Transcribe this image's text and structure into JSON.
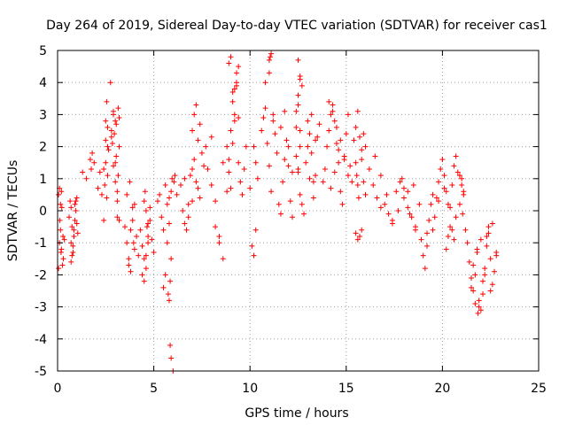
{
  "chart_data": {
    "type": "scatter",
    "title": "Day 264 of 2019, Sidereal Day-to-day VTEC variation (SDTVAR) for receiver cas1",
    "xlabel": "GPS time / hours",
    "ylabel": "SDTVAR / TECUs",
    "xlim": [
      0,
      25
    ],
    "ylim": [
      -5,
      5
    ],
    "xticks": [
      0,
      5,
      10,
      15,
      20,
      25
    ],
    "yticks": [
      -5,
      -4,
      -3,
      -2,
      -1,
      0,
      1,
      2,
      3,
      4,
      5
    ],
    "xtick_labels": [
      "0",
      "5",
      "10",
      "15",
      "20",
      "25"
    ],
    "ytick_labels": [
      "-5",
      "-4",
      "-3",
      "-2",
      "-1",
      "0",
      "1",
      "2",
      "3",
      "4",
      "5"
    ],
    "grid": true,
    "marker": "+",
    "color": "#ff0000",
    "series": [
      {
        "name": "cas1",
        "x": [
          0.05,
          0.1,
          0.15,
          0.2,
          0.25,
          0.3,
          0.35,
          0.05,
          0.1,
          0.15,
          0.2,
          0.12,
          0.18,
          0.22,
          0.28,
          0.6,
          0.65,
          0.7,
          0.75,
          0.8,
          0.85,
          0.9,
          0.95,
          1.0,
          1.05,
          0.7,
          0.8,
          0.9,
          1.0,
          0.75,
          0.85,
          0.95,
          0.7,
          1.3,
          1.5,
          1.7,
          1.75,
          1.8,
          1.9,
          2.1,
          2.2,
          2.3,
          2.4,
          2.5,
          2.6,
          2.4,
          2.45,
          2.5,
          2.55,
          2.6,
          2.5,
          2.55,
          2.6,
          2.65,
          2.75,
          2.8,
          2.85,
          2.9,
          2.95,
          3.0,
          3.05,
          3.1,
          3.15,
          3.2,
          2.8,
          2.9,
          3.0,
          3.1,
          3.2,
          2.9,
          3.0,
          3.1,
          3.2,
          3.05,
          3.15,
          3.5,
          3.6,
          3.7,
          3.8,
          3.9,
          4.0,
          4.1,
          4.2,
          3.7,
          3.8,
          3.9,
          4.0,
          3.6,
          3.75,
          3.95,
          4.3,
          4.4,
          4.5,
          4.6,
          4.7,
          4.8,
          4.9,
          5.0,
          4.4,
          4.5,
          4.6,
          4.7,
          4.8,
          4.5,
          4.55,
          4.6,
          4.65,
          4.7,
          5.2,
          5.3,
          5.4,
          5.5,
          5.6,
          5.7,
          5.8,
          5.9,
          5.5,
          5.6,
          5.7,
          5.8,
          5.75,
          5.8,
          5.85,
          5.9,
          5.95,
          5.85,
          5.9,
          6.0,
          6.05,
          6.1,
          6.2,
          6.4,
          6.6,
          6.8,
          7.0,
          7.2,
          7.4,
          7.6,
          6.5,
          6.7,
          6.9,
          7.1,
          7.3,
          7.5,
          7.7,
          7.0,
          7.1,
          7.2,
          7.3,
          7.4,
          6.6,
          6.8,
          7.0,
          7.8,
          8.0,
          8.2,
          8.4,
          8.6,
          8.8,
          8.0,
          8.2,
          8.4,
          8.6,
          8.8,
          8.9,
          9.0,
          9.1,
          9.2,
          9.3,
          9.4,
          8.9,
          9.0,
          9.1,
          9.2,
          9.3,
          9.4,
          8.9,
          9.0,
          9.1,
          9.2,
          9.3,
          9.4,
          9.5,
          9.6,
          9.7,
          9.8,
          10.0,
          10.1,
          10.2,
          10.3,
          10.2,
          10.3,
          10.4,
          10.6,
          10.7,
          10.8,
          10.9,
          11.0,
          11.1,
          11.2,
          11.3,
          11.4,
          10.8,
          11.0,
          11.1,
          11.2,
          11.5,
          11.6,
          11.7,
          11.8,
          11.9,
          12.0,
          12.1,
          12.2,
          11.6,
          11.8,
          12.0,
          12.2,
          11.0,
          11.05,
          12.4,
          12.5,
          12.6,
          12.7,
          12.8,
          12.9,
          13.0,
          13.1,
          13.2,
          13.3,
          13.4,
          13.5,
          13.6,
          12.5,
          12.6,
          12.7,
          12.4,
          12.5,
          12.6,
          12.4,
          12.5,
          12.6,
          12.5,
          12.6,
          13.0,
          13.2,
          13.4,
          13.1,
          13.3,
          13.8,
          13.9,
          14.0,
          14.1,
          14.2,
          14.3,
          14.4,
          14.5,
          14.6,
          14.7,
          14.8,
          14.9,
          15.0,
          15.1,
          15.2,
          15.3,
          14.1,
          14.3,
          14.5,
          14.7,
          14.9,
          15.1,
          14.2,
          14.4,
          14.6,
          15.4,
          15.5,
          15.6,
          15.7,
          15.8,
          15.9,
          16.0,
          15.5,
          15.6,
          15.7,
          15.8,
          15.5,
          15.55,
          15.6,
          15.65,
          15.8,
          15.9,
          16.0,
          16.2,
          16.4,
          16.6,
          16.8,
          17.0,
          17.2,
          17.4,
          17.6,
          17.8,
          18.0,
          18.2,
          18.4,
          18.6,
          18.8,
          16.5,
          16.8,
          17.1,
          17.4,
          17.7,
          18.0,
          18.3,
          18.6,
          17.9,
          18.2,
          18.5,
          18.9,
          19.0,
          19.1,
          19.2,
          19.3,
          19.4,
          19.5,
          19.6,
          19.7,
          19.8,
          19.9,
          20.0,
          20.1,
          20.2,
          20.3,
          20.4,
          20.5,
          20.6,
          20.7,
          20.8,
          19.2,
          19.5,
          19.8,
          20.1,
          20.4,
          20.7,
          20.5,
          20.6,
          20.2,
          20.3,
          20.9,
          21.0,
          21.1,
          21.2,
          20.9,
          21.0,
          21.05,
          21.1,
          21.3,
          21.4,
          21.5,
          21.6,
          21.7,
          21.8,
          21.9,
          22.0,
          22.1,
          22.2,
          22.3,
          22.4,
          22.5,
          22.6,
          22.7,
          22.8,
          21.5,
          21.7,
          21.9,
          22.1,
          21.6,
          21.8,
          22.0,
          22.4,
          22.6,
          22.8,
          22.2,
          22.5,
          22.3,
          21.85
        ],
        "y": [
          0.5,
          0.7,
          -0.6,
          -1.2,
          -1.7,
          -1.5,
          -0.9,
          -1.8,
          -1.0,
          0.2,
          0.6,
          -0.3,
          -1.3,
          0.1,
          -0.8,
          -0.2,
          0.3,
          0.1,
          -0.5,
          -1.3,
          -0.8,
          -0.3,
          0.0,
          0.4,
          -0.7,
          -1.6,
          -1.1,
          0.2,
          -0.4,
          -1.4,
          -0.6,
          0.3,
          -1.0,
          1.2,
          1.0,
          1.6,
          1.3,
          1.8,
          1.5,
          0.7,
          1.2,
          0.5,
          -0.3,
          1.5,
          2.0,
          1.3,
          0.8,
          2.2,
          0.4,
          1.1,
          2.8,
          3.4,
          2.6,
          1.9,
          4.0,
          2.5,
          2.1,
          3.0,
          2.4,
          2.8,
          1.7,
          0.6,
          3.2,
          2.9,
          2.3,
          1.4,
          0.9,
          -0.2,
          2.0,
          3.1,
          1.5,
          0.3,
          -0.3,
          2.7,
          1.1,
          -0.5,
          -1.0,
          -1.5,
          -1.9,
          -0.3,
          0.2,
          -0.8,
          -1.4,
          -1.7,
          -0.6,
          0.1,
          -1.2,
          0.5,
          0.9,
          -1.0,
          -0.6,
          -1.1,
          -1.5,
          -1.8,
          -0.4,
          0.1,
          -0.9,
          -1.3,
          -2.0,
          -2.2,
          -1.4,
          -0.8,
          -0.3,
          0.3,
          0.6,
          0.0,
          -0.5,
          -1.0,
          0.3,
          0.5,
          -0.2,
          -0.6,
          0.8,
          0.2,
          -0.4,
          -1.5,
          -2.4,
          -2.0,
          -1.0,
          0.4,
          -2.6,
          -2.8,
          -2.2,
          0.6,
          1.0,
          -4.2,
          -4.6,
          -5.0,
          0.9,
          1.1,
          0.5,
          0.8,
          1.0,
          0.2,
          1.3,
          0.9,
          0.4,
          1.4,
          0.0,
          -0.6,
          1.1,
          1.6,
          0.7,
          1.8,
          2.0,
          2.5,
          3.0,
          3.3,
          2.2,
          2.7,
          -0.4,
          -0.2,
          0.3,
          1.3,
          0.8,
          -0.5,
          -1.0,
          1.5,
          2.0,
          2.3,
          0.3,
          -0.8,
          -1.5,
          0.6,
          1.6,
          2.5,
          3.4,
          3.8,
          4.3,
          2.9,
          1.2,
          0.7,
          2.1,
          3.0,
          4.0,
          4.5,
          4.6,
          4.8,
          3.7,
          2.8,
          3.9,
          1.5,
          0.9,
          0.5,
          1.3,
          2.0,
          0.7,
          -1.1,
          -1.4,
          -0.6,
          2.0,
          1.5,
          1.0,
          2.5,
          2.9,
          3.2,
          2.1,
          1.4,
          0.6,
          2.8,
          2.4,
          1.8,
          4.0,
          4.7,
          4.9,
          3.0,
          0.2,
          -0.1,
          0.9,
          1.6,
          2.2,
          1.4,
          0.3,
          -0.2,
          2.6,
          3.1,
          2.0,
          1.2,
          4.3,
          4.8,
          1.7,
          1.2,
          0.5,
          0.2,
          -0.1,
          1.5,
          2.0,
          2.4,
          1.8,
          0.9,
          1.1,
          2.3,
          2.7,
          4.7,
          4.2,
          3.9,
          3.1,
          3.6,
          4.1,
          2.6,
          3.3,
          2.0,
          1.3,
          2.5,
          2.8,
          3.0,
          2.2,
          1.0,
          0.4,
          0.9,
          1.3,
          2.0,
          2.5,
          3.0,
          3.3,
          2.8,
          2.1,
          1.5,
          0.6,
          0.2,
          1.7,
          2.4,
          3.0,
          1.4,
          0.9,
          3.4,
          3.1,
          2.6,
          2.2,
          1.6,
          1.1,
          0.7,
          1.2,
          1.9,
          2.2,
          2.6,
          3.1,
          2.3,
          1.6,
          0.9,
          0.5,
          -0.7,
          -0.9,
          -0.8,
          -0.6,
          1.5,
          1.1,
          0.8,
          0.4,
          1.9,
          2.4,
          2.0,
          1.3,
          0.8,
          0.4,
          0.1,
          0.2,
          -0.1,
          -0.3,
          0.6,
          0.9,
          0.4,
          0.1,
          -0.2,
          -0.6,
          0.2,
          1.7,
          1.1,
          0.5,
          -0.4,
          0.0,
          0.7,
          -0.1,
          -0.5,
          1.0,
          0.6,
          0.8,
          -0.9,
          -1.4,
          -1.8,
          -0.7,
          -0.3,
          0.2,
          0.5,
          -0.2,
          0.4,
          0.9,
          1.3,
          1.6,
          1.1,
          0.6,
          0.2,
          -0.5,
          0.8,
          1.4,
          1.7,
          1.2,
          -1.1,
          -0.6,
          0.3,
          0.7,
          0.1,
          -0.2,
          -0.6,
          -0.9,
          -1.2,
          -0.8,
          1.1,
          0.8,
          0.5,
          -0.6,
          0.2,
          1.0,
          -0.1,
          0.6,
          -1.0,
          -1.6,
          -2.1,
          -2.5,
          -2.0,
          -1.3,
          -2.8,
          -3.1,
          -2.6,
          -1.8,
          -1.1,
          -0.7,
          -1.5,
          -2.3,
          -1.9,
          -1.4,
          -2.4,
          -2.9,
          -3.0,
          -2.2,
          -1.7,
          -1.2,
          -0.9,
          -0.5,
          -0.4,
          -1.3,
          -2.0,
          -2.5,
          -0.8,
          -3.2
        ]
      }
    ]
  }
}
